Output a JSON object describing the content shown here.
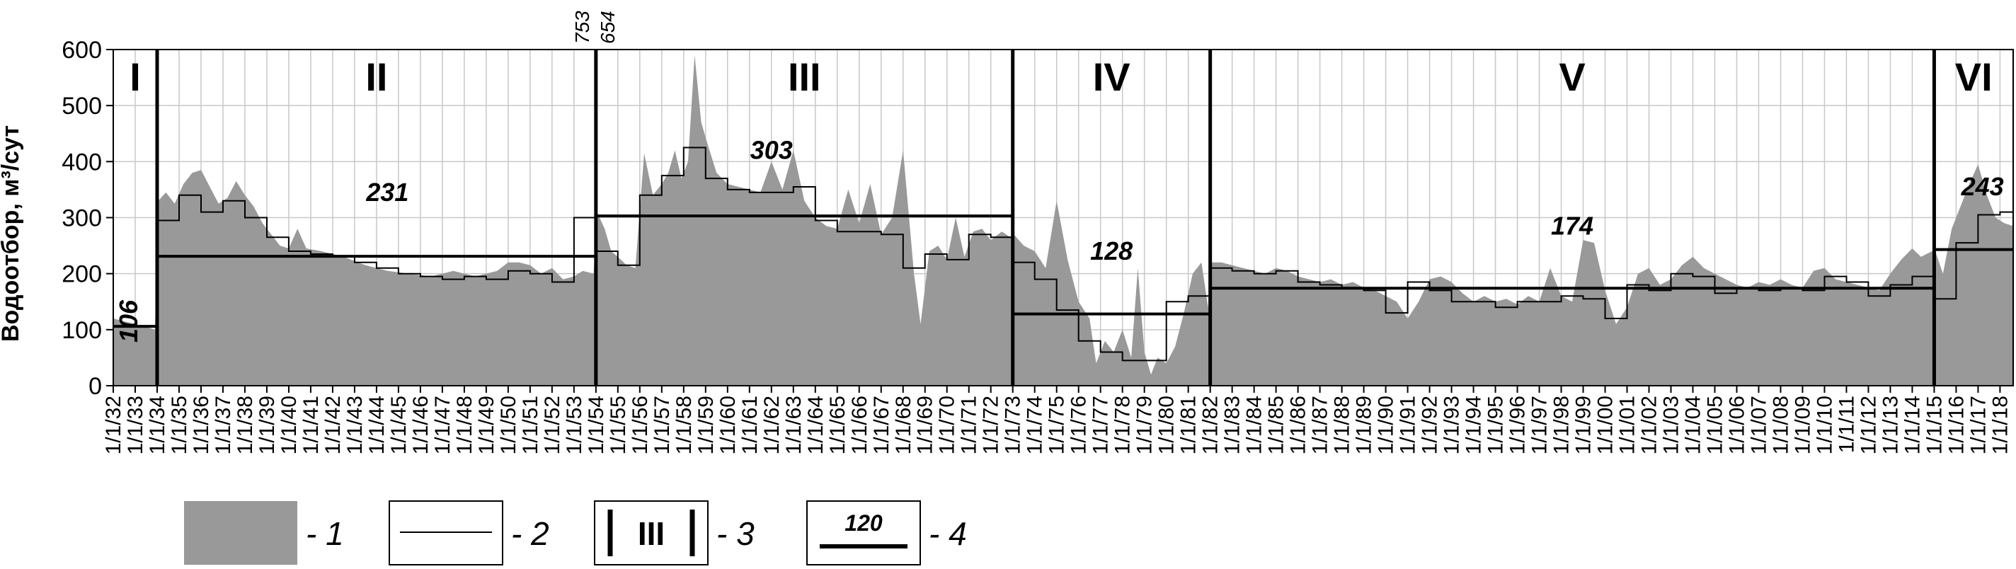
{
  "chart_data": {
    "type": "bar",
    "title": "",
    "ylabel": "Водоотбор, м³/сут",
    "xlabel": "",
    "ylim": [
      0,
      600
    ],
    "yticks": [
      0,
      100,
      200,
      300,
      400,
      500,
      600
    ],
    "xrange": [
      1932.0,
      2018.6
    ],
    "xtick_labels": [
      "1/1/32",
      "1/1/33",
      "1/1/34",
      "1/1/35",
      "1/1/36",
      "1/1/37",
      "1/1/38",
      "1/1/39",
      "1/1/40",
      "1/1/41",
      "1/1/42",
      "1/1/43",
      "1/1/44",
      "1/1/45",
      "1/1/46",
      "1/1/47",
      "1/1/48",
      "1/1/49",
      "1/1/50",
      "1/1/51",
      "1/1/52",
      "1/1/53",
      "1/1/54",
      "1/1/55",
      "1/1/56",
      "1/1/57",
      "1/1/58",
      "1/1/59",
      "1/1/60",
      "1/1/61",
      "1/1/62",
      "1/1/63",
      "1/1/64",
      "1/1/65",
      "1/1/66",
      "1/1/67",
      "1/1/68",
      "1/1/69",
      "1/1/70",
      "1/1/71",
      "1/1/72",
      "1/1/73",
      "1/1/74",
      "1/1/75",
      "1/1/76",
      "1/1/77",
      "1/1/78",
      "1/1/79",
      "1/1/80",
      "1/1/81",
      "1/1/82",
      "1/1/83",
      "1/1/84",
      "1/1/85",
      "1/1/86",
      "1/1/87",
      "1/1/88",
      "1/1/89",
      "1/1/90",
      "1/1/91",
      "1/1/92",
      "1/1/93",
      "1/1/94",
      "1/1/95",
      "1/1/96",
      "1/1/97",
      "1/1/98",
      "1/1/99",
      "1/1/00",
      "1/1/01",
      "1/1/02",
      "1/1/03",
      "1/1/04",
      "1/1/05",
      "1/1/06",
      "1/1/07",
      "1/1/08",
      "1/1/09",
      "1/1/10",
      "1/1/11",
      "1/1/12",
      "1/1/13",
      "1/1/14",
      "1/1/15",
      "1/1/16",
      "1/1/17",
      "1/1/18"
    ],
    "grid": true,
    "series": [
      {
        "name": "1",
        "type": "area",
        "color": "#999999",
        "points": [
          [
            1932.0,
            120
          ],
          [
            1932.5,
            115
          ],
          [
            1933.0,
            110
          ],
          [
            1933.5,
            105
          ],
          [
            1933.9,
            100
          ],
          [
            1934.05,
            330
          ],
          [
            1934.4,
            345
          ],
          [
            1934.8,
            325
          ],
          [
            1935.2,
            360
          ],
          [
            1935.6,
            380
          ],
          [
            1936.0,
            385
          ],
          [
            1936.4,
            355
          ],
          [
            1936.8,
            325
          ],
          [
            1937.2,
            335
          ],
          [
            1937.6,
            365
          ],
          [
            1938.0,
            340
          ],
          [
            1938.4,
            320
          ],
          [
            1938.8,
            290
          ],
          [
            1939.2,
            270
          ],
          [
            1939.6,
            250
          ],
          [
            1940.0,
            245
          ],
          [
            1940.4,
            280
          ],
          [
            1940.8,
            245
          ],
          [
            1941.5,
            240
          ],
          [
            1942.5,
            230
          ],
          [
            1943.5,
            215
          ],
          [
            1944.5,
            205
          ],
          [
            1945.5,
            200
          ],
          [
            1946.5,
            195
          ],
          [
            1947.5,
            205
          ],
          [
            1948.5,
            195
          ],
          [
            1949.5,
            205
          ],
          [
            1950.0,
            220
          ],
          [
            1950.5,
            220
          ],
          [
            1951.0,
            215
          ],
          [
            1951.5,
            200
          ],
          [
            1952.0,
            210
          ],
          [
            1952.5,
            190
          ],
          [
            1953.0,
            195
          ],
          [
            1953.4,
            205
          ],
          [
            1953.9,
            200
          ],
          [
            1954.05,
            310
          ],
          [
            1954.4,
            280
          ],
          [
            1954.7,
            240
          ],
          [
            1955.0,
            230
          ],
          [
            1955.4,
            215
          ],
          [
            1955.8,
            210
          ],
          [
            1956.2,
            415
          ],
          [
            1956.6,
            340
          ],
          [
            1957.0,
            360
          ],
          [
            1957.3,
            380
          ],
          [
            1957.6,
            420
          ],
          [
            1957.9,
            370
          ],
          [
            1958.2,
            400
          ],
          [
            1958.5,
            590
          ],
          [
            1958.8,
            470
          ],
          [
            1959.1,
            430
          ],
          [
            1959.5,
            380
          ],
          [
            1960.0,
            360
          ],
          [
            1960.5,
            355
          ],
          [
            1961.0,
            350
          ],
          [
            1961.5,
            345
          ],
          [
            1962.0,
            400
          ],
          [
            1962.5,
            350
          ],
          [
            1963.0,
            420
          ],
          [
            1963.5,
            330
          ],
          [
            1964.0,
            300
          ],
          [
            1964.5,
            285
          ],
          [
            1965.0,
            280
          ],
          [
            1965.5,
            350
          ],
          [
            1966.0,
            290
          ],
          [
            1966.5,
            360
          ],
          [
            1967.0,
            270
          ],
          [
            1967.5,
            300
          ],
          [
            1968.0,
            420
          ],
          [
            1968.5,
            200
          ],
          [
            1968.8,
            110
          ],
          [
            1969.2,
            240
          ],
          [
            1969.6,
            250
          ],
          [
            1970.0,
            225
          ],
          [
            1970.4,
            300
          ],
          [
            1970.8,
            230
          ],
          [
            1971.2,
            275
          ],
          [
            1971.6,
            280
          ],
          [
            1972.0,
            260
          ],
          [
            1972.5,
            275
          ],
          [
            1972.9,
            265
          ],
          [
            1973.05,
            270
          ],
          [
            1973.5,
            250
          ],
          [
            1974.0,
            240
          ],
          [
            1974.5,
            210
          ],
          [
            1975.0,
            330
          ],
          [
            1975.5,
            225
          ],
          [
            1976.0,
            150
          ],
          [
            1976.5,
            120
          ],
          [
            1976.8,
            40
          ],
          [
            1977.2,
            80
          ],
          [
            1977.6,
            60
          ],
          [
            1978.0,
            100
          ],
          [
            1978.4,
            50
          ],
          [
            1978.7,
            210
          ],
          [
            1979.0,
            60
          ],
          [
            1979.3,
            20
          ],
          [
            1979.6,
            50
          ],
          [
            1980.0,
            40
          ],
          [
            1980.4,
            70
          ],
          [
            1980.8,
            130
          ],
          [
            1981.2,
            200
          ],
          [
            1981.6,
            220
          ],
          [
            1981.9,
            140
          ],
          [
            1982.05,
            220
          ],
          [
            1982.5,
            220
          ],
          [
            1983.0,
            215
          ],
          [
            1983.5,
            210
          ],
          [
            1984.0,
            205
          ],
          [
            1984.5,
            200
          ],
          [
            1985.0,
            210
          ],
          [
            1985.5,
            205
          ],
          [
            1986.0,
            195
          ],
          [
            1986.5,
            190
          ],
          [
            1987.0,
            185
          ],
          [
            1987.5,
            190
          ],
          [
            1988.0,
            180
          ],
          [
            1988.5,
            185
          ],
          [
            1989.0,
            175
          ],
          [
            1989.5,
            170
          ],
          [
            1990.0,
            160
          ],
          [
            1990.5,
            150
          ],
          [
            1991.0,
            120
          ],
          [
            1991.5,
            150
          ],
          [
            1992.0,
            190
          ],
          [
            1992.5,
            195
          ],
          [
            1993.0,
            185
          ],
          [
            1993.5,
            165
          ],
          [
            1994.0,
            150
          ],
          [
            1994.5,
            160
          ],
          [
            1995.0,
            150
          ],
          [
            1995.5,
            155
          ],
          [
            1996.0,
            145
          ],
          [
            1996.5,
            160
          ],
          [
            1997.0,
            150
          ],
          [
            1997.5,
            210
          ],
          [
            1998.0,
            160
          ],
          [
            1998.5,
            150
          ],
          [
            1999.0,
            260
          ],
          [
            1999.5,
            255
          ],
          [
            2000.0,
            170
          ],
          [
            2000.5,
            110
          ],
          [
            2001.0,
            140
          ],
          [
            2001.5,
            200
          ],
          [
            2002.0,
            210
          ],
          [
            2002.5,
            180
          ],
          [
            2003.0,
            190
          ],
          [
            2003.5,
            215
          ],
          [
            2004.0,
            230
          ],
          [
            2004.5,
            210
          ],
          [
            2005.0,
            200
          ],
          [
            2005.5,
            190
          ],
          [
            2006.0,
            180
          ],
          [
            2006.5,
            175
          ],
          [
            2007.0,
            185
          ],
          [
            2007.5,
            180
          ],
          [
            2008.0,
            190
          ],
          [
            2008.5,
            180
          ],
          [
            2009.0,
            175
          ],
          [
            2009.5,
            205
          ],
          [
            2010.0,
            210
          ],
          [
            2010.5,
            190
          ],
          [
            2011.0,
            185
          ],
          [
            2011.5,
            180
          ],
          [
            2012.0,
            175
          ],
          [
            2012.5,
            170
          ],
          [
            2013.0,
            200
          ],
          [
            2013.5,
            225
          ],
          [
            2014.0,
            245
          ],
          [
            2014.4,
            230
          ],
          [
            2014.9,
            240
          ],
          [
            2015.05,
            240
          ],
          [
            2015.4,
            200
          ],
          [
            2015.8,
            280
          ],
          [
            2016.2,
            320
          ],
          [
            2016.6,
            360
          ],
          [
            2017.0,
            395
          ],
          [
            2017.4,
            340
          ],
          [
            2017.8,
            300
          ],
          [
            2018.2,
            290
          ],
          [
            2018.6,
            285
          ]
        ]
      },
      {
        "name": "2",
        "type": "step",
        "color": "#000000",
        "steps": [
          [
            1932.0,
            105
          ],
          [
            1934.0,
            295
          ],
          [
            1935.0,
            340
          ],
          [
            1936.0,
            310
          ],
          [
            1937.0,
            330
          ],
          [
            1938.0,
            300
          ],
          [
            1939.0,
            265
          ],
          [
            1940.0,
            240
          ],
          [
            1941.0,
            235
          ],
          [
            1942.0,
            230
          ],
          [
            1943.0,
            220
          ],
          [
            1944.0,
            210
          ],
          [
            1945.0,
            200
          ],
          [
            1946.0,
            195
          ],
          [
            1947.0,
            190
          ],
          [
            1948.0,
            195
          ],
          [
            1949.0,
            190
          ],
          [
            1950.0,
            205
          ],
          [
            1951.0,
            200
          ],
          [
            1952.0,
            185
          ],
          [
            1953.0,
            300
          ],
          [
            1954.0,
            240
          ],
          [
            1955.0,
            215
          ],
          [
            1956.0,
            340
          ],
          [
            1957.0,
            375
          ],
          [
            1958.0,
            425
          ],
          [
            1959.0,
            370
          ],
          [
            1960.0,
            350
          ],
          [
            1961.0,
            345
          ],
          [
            1962.0,
            345
          ],
          [
            1963.0,
            355
          ],
          [
            1964.0,
            295
          ],
          [
            1965.0,
            275
          ],
          [
            1966.0,
            275
          ],
          [
            1967.0,
            270
          ],
          [
            1968.0,
            210
          ],
          [
            1969.0,
            235
          ],
          [
            1970.0,
            225
          ],
          [
            1971.0,
            270
          ],
          [
            1972.0,
            265
          ],
          [
            1973.0,
            220
          ],
          [
            1974.0,
            190
          ],
          [
            1975.0,
            135
          ],
          [
            1976.0,
            80
          ],
          [
            1977.0,
            60
          ],
          [
            1978.0,
            45
          ],
          [
            1979.0,
            45
          ],
          [
            1980.0,
            150
          ],
          [
            1981.0,
            160
          ],
          [
            1982.0,
            210
          ],
          [
            1983.0,
            205
          ],
          [
            1984.0,
            200
          ],
          [
            1985.0,
            205
          ],
          [
            1986.0,
            185
          ],
          [
            1987.0,
            180
          ],
          [
            1988.0,
            175
          ],
          [
            1989.0,
            170
          ],
          [
            1990.0,
            130
          ],
          [
            1991.0,
            185
          ],
          [
            1992.0,
            170
          ],
          [
            1993.0,
            150
          ],
          [
            1994.0,
            150
          ],
          [
            1995.0,
            140
          ],
          [
            1996.0,
            150
          ],
          [
            1997.0,
            150
          ],
          [
            1998.0,
            160
          ],
          [
            1999.0,
            155
          ],
          [
            2000.0,
            120
          ],
          [
            2001.0,
            180
          ],
          [
            2002.0,
            170
          ],
          [
            2003.0,
            200
          ],
          [
            2004.0,
            195
          ],
          [
            2005.0,
            165
          ],
          [
            2006.0,
            175
          ],
          [
            2007.0,
            170
          ],
          [
            2008.0,
            175
          ],
          [
            2009.0,
            170
          ],
          [
            2010.0,
            195
          ],
          [
            2011.0,
            185
          ],
          [
            2012.0,
            160
          ],
          [
            2013.0,
            180
          ],
          [
            2014.0,
            195
          ],
          [
            2015.0,
            155
          ],
          [
            2016.0,
            255
          ],
          [
            2017.0,
            305
          ],
          [
            2018.0,
            310
          ],
          [
            2018.6,
            310
          ]
        ]
      }
    ],
    "periods": [
      {
        "label": "I",
        "start": 1932.0,
        "end": 1934.0,
        "mean": 106,
        "mean_label": "106"
      },
      {
        "label": "II",
        "start": 1934.0,
        "end": 1954.0,
        "mean": 231,
        "mean_label": "231"
      },
      {
        "label": "III",
        "start": 1954.0,
        "end": 1973.0,
        "mean": 303,
        "mean_label": "303"
      },
      {
        "label": "IV",
        "start": 1973.0,
        "end": 1982.0,
        "mean": 128,
        "mean_label": "128"
      },
      {
        "label": "V",
        "start": 1982.0,
        "end": 2015.0,
        "mean": 174,
        "mean_label": "174"
      },
      {
        "label": "VI",
        "start": 2015.0,
        "end": 2018.6,
        "mean": 243,
        "mean_label": "243"
      }
    ],
    "top_annotations": [
      "753",
      "654"
    ],
    "legend": [
      {
        "key": "1",
        "label": "- 1"
      },
      {
        "key": "2",
        "label": "- 2"
      },
      {
        "key": "3",
        "label": "- 3",
        "sample_text": "III"
      },
      {
        "key": "4",
        "label": "- 4",
        "sample_text": "120"
      }
    ]
  }
}
